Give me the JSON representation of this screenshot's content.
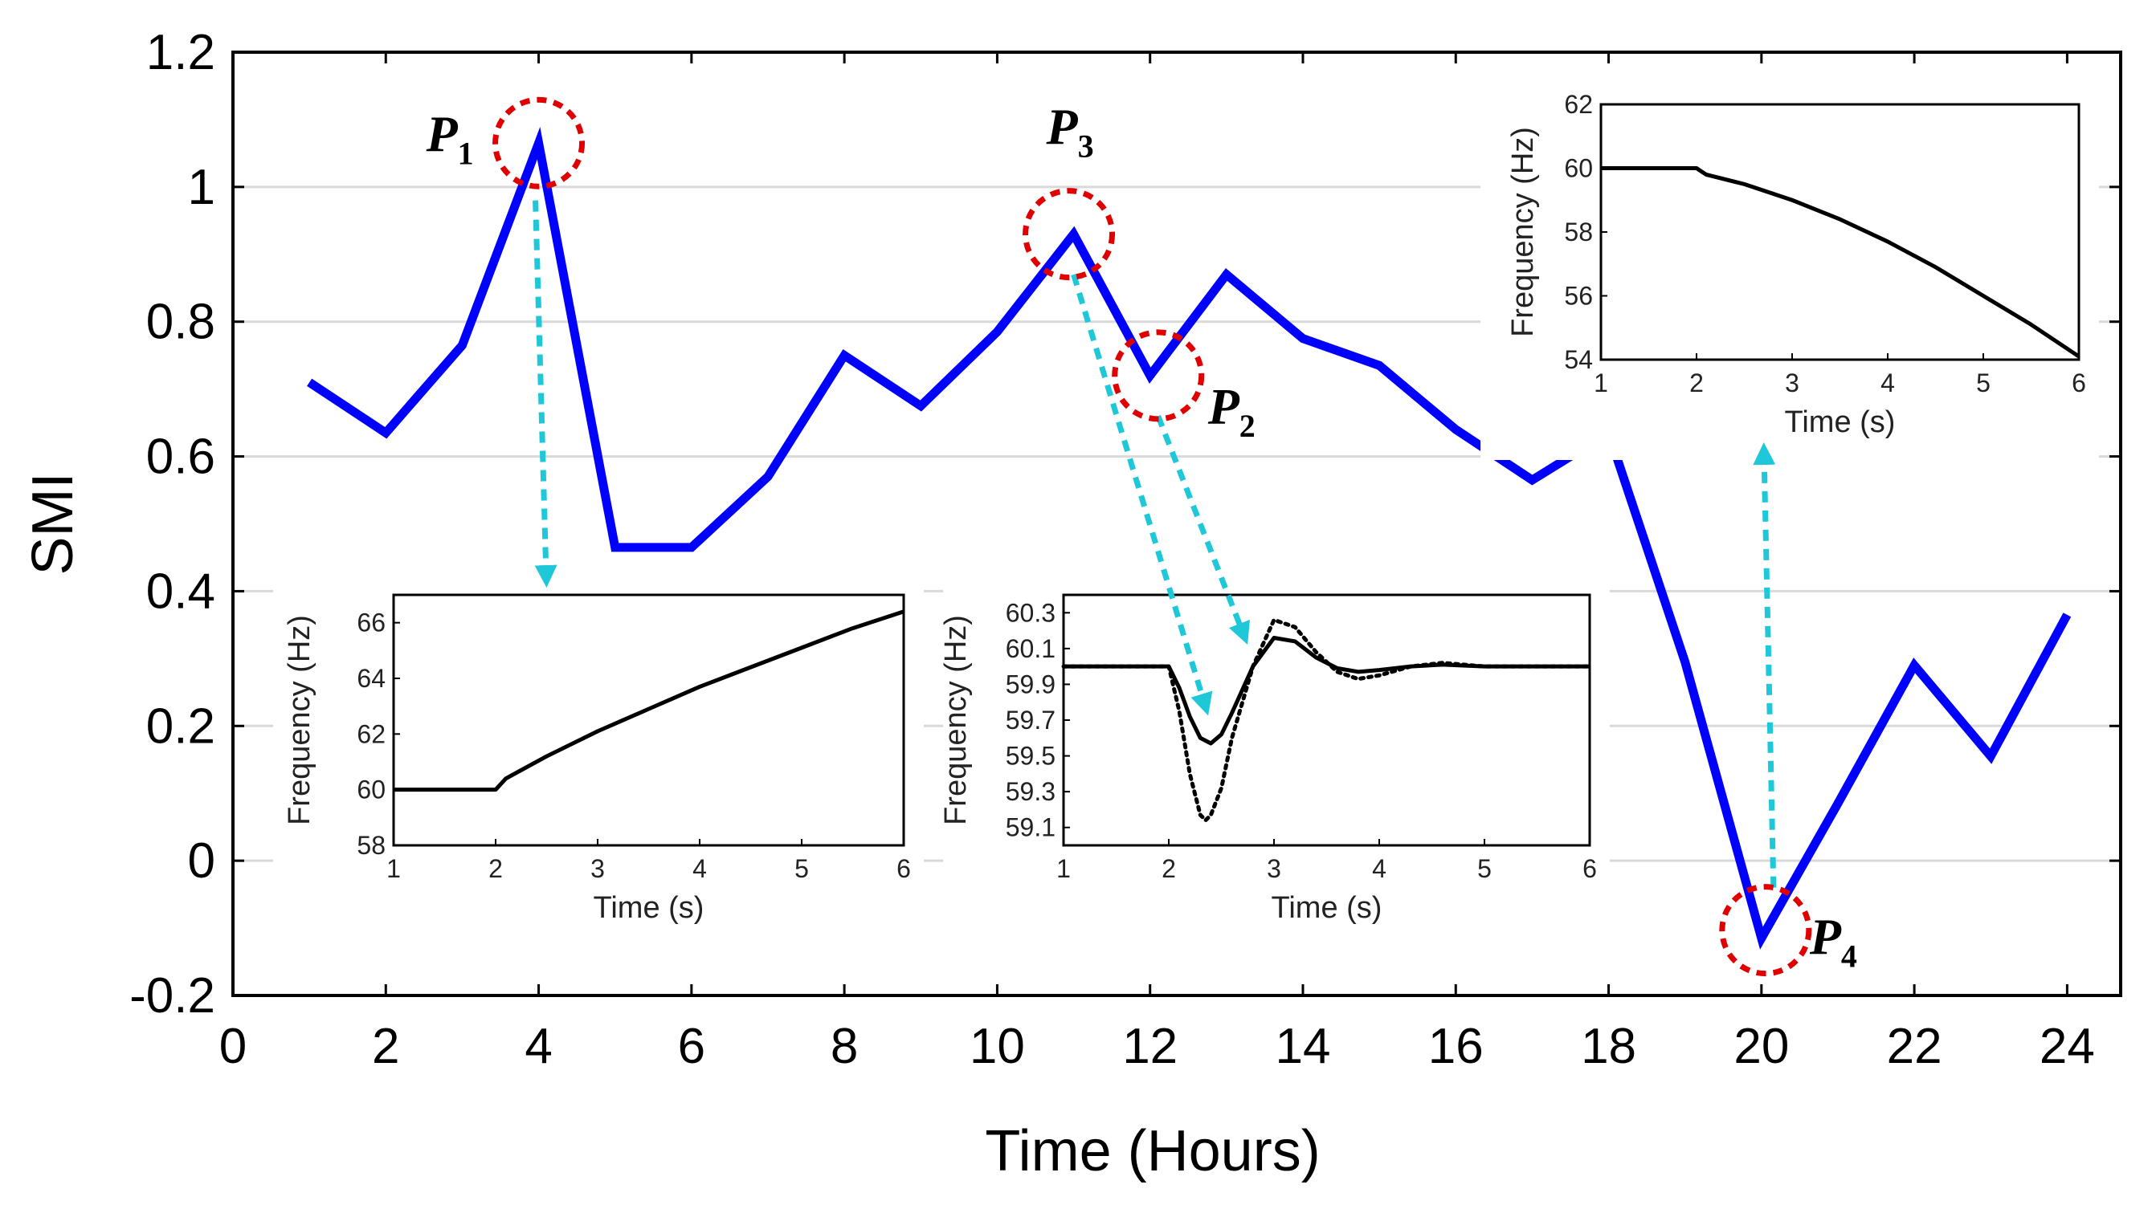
{
  "chart_data": [
    {
      "id": "main",
      "type": "line",
      "xlabel": "Time (Hours)",
      "ylabel": "SMI",
      "xlim": [
        0,
        24.7
      ],
      "ylim": [
        -0.2,
        1.2
      ],
      "xticks": [
        0,
        2,
        4,
        6,
        8,
        10,
        12,
        14,
        16,
        18,
        20,
        22,
        24
      ],
      "yticks": [
        -0.2,
        0,
        0.2,
        0.4,
        0.6,
        0.8,
        1,
        1.2
      ],
      "ytick_labels": [
        "-0.2",
        "0",
        "0.2",
        "0.4",
        "0.6",
        "0.8",
        "1",
        "1.2"
      ],
      "grid": "horizontal",
      "color": "#0000ff",
      "series": [
        {
          "name": "SMI",
          "x": [
            1,
            2,
            3,
            4,
            5,
            6,
            7,
            8,
            9,
            10,
            11,
            12,
            13,
            14,
            15,
            16,
            17,
            18,
            19,
            20,
            21,
            22,
            23,
            24
          ],
          "values": [
            0.71,
            0.635,
            0.765,
            1.065,
            0.465,
            0.465,
            0.57,
            0.75,
            0.675,
            0.785,
            0.93,
            0.72,
            0.87,
            0.775,
            0.735,
            0.64,
            0.565,
            0.635,
            0.295,
            -0.115,
            0.085,
            0.29,
            0.155,
            0.365
          ]
        }
      ],
      "annotations": [
        {
          "name": "P",
          "sub": "1",
          "x": 4,
          "y": 1.065
        },
        {
          "name": "P",
          "sub": "2",
          "x": 12,
          "y": 0.72
        },
        {
          "name": "P",
          "sub": "3",
          "x": 11,
          "y": 0.93
        },
        {
          "name": "P",
          "sub": "4",
          "x": 20,
          "y": -0.115
        }
      ]
    },
    {
      "id": "inset_p1",
      "type": "line",
      "xlabel": "Time (s)",
      "ylabel": "Frequency (Hz)",
      "xlim": [
        1,
        6
      ],
      "ylim": [
        58,
        67
      ],
      "xticks": [
        1,
        2,
        3,
        4,
        5,
        6
      ],
      "yticks": [
        58,
        60,
        62,
        64,
        66
      ],
      "series": [
        {
          "name": "frequency",
          "style": "solid",
          "x": [
            1,
            2,
            2.1,
            2.5,
            3,
            3.5,
            4,
            4.5,
            5,
            5.5,
            6
          ],
          "values": [
            60,
            60,
            60.4,
            61.2,
            62.1,
            62.9,
            63.7,
            64.4,
            65.1,
            65.8,
            66.4
          ]
        }
      ]
    },
    {
      "id": "inset_p2_p3",
      "type": "line",
      "xlabel": "Time (s)",
      "ylabel": "Frequency (Hz)",
      "xlim": [
        1,
        6
      ],
      "ylim": [
        59.0,
        60.4
      ],
      "xticks": [
        1,
        2,
        3,
        4,
        5,
        6
      ],
      "yticks": [
        59.1,
        59.3,
        59.5,
        59.7,
        59.9,
        60.1,
        60.3
      ],
      "series": [
        {
          "name": "P2",
          "style": "solid",
          "x": [
            1,
            2,
            2.1,
            2.2,
            2.3,
            2.4,
            2.5,
            2.6,
            2.8,
            3.0,
            3.2,
            3.4,
            3.6,
            3.8,
            4.0,
            4.3,
            4.6,
            5.0,
            6
          ],
          "values": [
            60.0,
            60.0,
            59.88,
            59.72,
            59.6,
            59.57,
            59.62,
            59.74,
            60.0,
            60.16,
            60.14,
            60.05,
            59.99,
            59.97,
            59.98,
            60.0,
            60.01,
            60.0,
            60.0
          ]
        },
        {
          "name": "P3",
          "style": "dotted",
          "x": [
            1,
            2,
            2.1,
            2.2,
            2.3,
            2.35,
            2.4,
            2.5,
            2.6,
            2.8,
            3.0,
            3.2,
            3.4,
            3.6,
            3.8,
            4.0,
            4.3,
            4.6,
            5.0,
            6
          ],
          "values": [
            60.0,
            60.0,
            59.75,
            59.4,
            59.17,
            59.14,
            59.17,
            59.32,
            59.6,
            60.0,
            60.26,
            60.22,
            60.08,
            59.97,
            59.93,
            59.95,
            60.0,
            60.02,
            60.0,
            60.0
          ]
        }
      ]
    },
    {
      "id": "inset_p4",
      "type": "line",
      "xlabel": "Time (s)",
      "ylabel": "Frequency (Hz)",
      "xlim": [
        1,
        6
      ],
      "ylim": [
        54,
        62
      ],
      "xticks": [
        1,
        2,
        3,
        4,
        5,
        6
      ],
      "yticks": [
        54,
        56,
        58,
        60,
        62
      ],
      "series": [
        {
          "name": "frequency",
          "style": "solid",
          "x": [
            1,
            2,
            2.1,
            2.5,
            3,
            3.5,
            4,
            4.5,
            5,
            5.5,
            6
          ],
          "values": [
            60,
            60,
            59.8,
            59.5,
            59.0,
            58.4,
            57.7,
            56.9,
            56.0,
            55.1,
            54.1
          ]
        }
      ]
    }
  ]
}
